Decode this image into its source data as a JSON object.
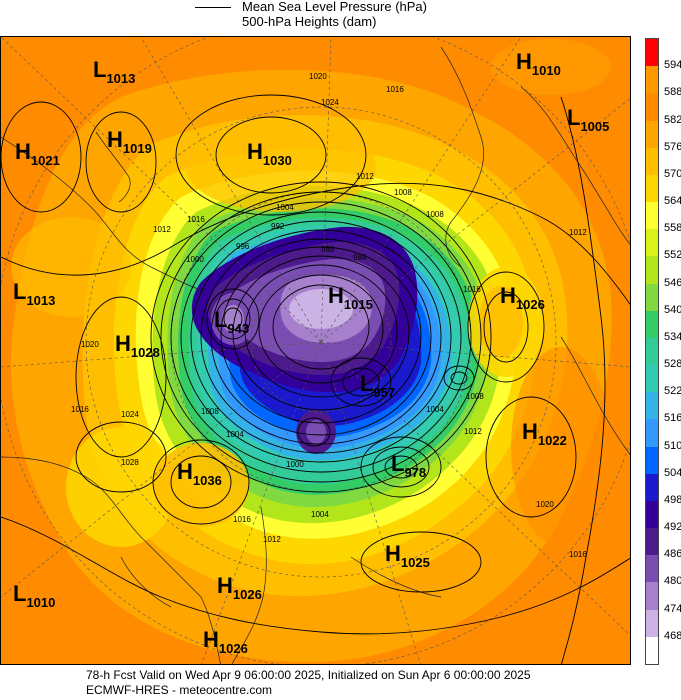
{
  "legend": {
    "line_label": "Mean Sea Level Pressure (hPa)",
    "fill_label": "500-hPa Heights (dam)"
  },
  "colorbar": {
    "ticks": [
      "594",
      "588",
      "582",
      "576",
      "570",
      "564",
      "558",
      "552",
      "546",
      "540",
      "534",
      "528",
      "522",
      "516",
      "510",
      "504",
      "498",
      "492",
      "486",
      "480",
      "474",
      "468"
    ],
    "colors": [
      "#ff0000",
      "#ff9900",
      "#ff8c00",
      "#ffa500",
      "#ffbf00",
      "#ffd700",
      "#ffff33",
      "#d9f21a",
      "#b3e61a",
      "#80d940",
      "#33cc66",
      "#33cc99",
      "#33ccb3",
      "#33b3e6",
      "#3399ff",
      "#0066ff",
      "#1a1acc",
      "#330099",
      "#4d1a8c",
      "#7a4db3",
      "#a680cc",
      "#ccb3e6",
      "#ffffff"
    ]
  },
  "pressure_centers": [
    {
      "type": "L",
      "value": "1013",
      "name": "low-1013-top-left"
    },
    {
      "type": "H",
      "value": "1010",
      "name": "high-1010-top-right"
    },
    {
      "type": "L",
      "value": "1005",
      "name": "low-1005-right"
    },
    {
      "type": "H",
      "value": "1019",
      "name": "high-1019"
    },
    {
      "type": "H",
      "value": "1021",
      "name": "high-1021"
    },
    {
      "type": "H",
      "value": "1030",
      "name": "high-1030"
    },
    {
      "type": "L",
      "value": "1013",
      "name": "low-1013-left"
    },
    {
      "type": "H",
      "value": "1026",
      "name": "high-1026-right"
    },
    {
      "type": "L",
      "value": "943",
      "name": "low-943"
    },
    {
      "type": "H",
      "value": "1015",
      "name": "high-1015-center"
    },
    {
      "type": "H",
      "value": "1028",
      "name": "high-1028"
    },
    {
      "type": "L",
      "value": "957",
      "name": "low-957"
    },
    {
      "type": "H",
      "value": "1022",
      "name": "high-1022"
    },
    {
      "type": "L",
      "value": "978",
      "name": "low-978"
    },
    {
      "type": "H",
      "value": "1036",
      "name": "high-1036"
    },
    {
      "type": "H",
      "value": "1025",
      "name": "high-1025"
    },
    {
      "type": "L",
      "value": "1010",
      "name": "low-1010-bottom-left"
    },
    {
      "type": "H",
      "value": "1026",
      "name": "high-1026-bottom-a"
    },
    {
      "type": "H",
      "value": "1026",
      "name": "high-1026-bottom-b"
    }
  ],
  "contour_labels": [
    "1020",
    "1024",
    "1016",
    "1012",
    "1008",
    "1004",
    "1000",
    "996",
    "992",
    "988",
    "984",
    "1012",
    "1016",
    "1024",
    "1020",
    "1004",
    "1008",
    "1012",
    "1016",
    "1028",
    "1016",
    "1012",
    "1008",
    "1004",
    "1008",
    "1012",
    "1016",
    "1000",
    "1004",
    "1020",
    "1016"
  ],
  "footer": {
    "line1": "78-h Fcst Valid on Wed Apr  9 06:00:00 2025, Initialized on Sun Apr  6 00:00:00 2025",
    "line2": "ECMWF-HRES  - meteocentre.com"
  }
}
